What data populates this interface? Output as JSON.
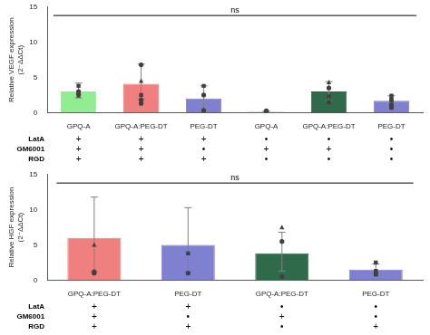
{
  "chart_data": [
    {
      "type": "bar",
      "ylabel": "Relative VEGF expression\n(2⁻ΔΔCt)",
      "categories": [
        "GPQ-A",
        "GPQ-A:PEG-DT",
        "PEG-DT",
        "GPQ-A",
        "GPQ-A:PEG-DT",
        "PEG-DT"
      ],
      "values": [
        3.0,
        4.1,
        2.0,
        0.15,
        3.0,
        1.7
      ],
      "colors": [
        "#90EE90",
        "#F08080",
        "#8080D0",
        "#90EE90",
        "#2F6B4A",
        "#8080D0"
      ],
      "error_low": [
        0.9,
        2.2,
        1.4,
        0.08,
        1.3,
        0.7
      ],
      "error_high": [
        1.2,
        2.8,
        1.8,
        0.1,
        1.4,
        0.7
      ],
      "points": [
        [
          3.8,
          3.0,
          2.6,
          2.4
        ],
        [
          6.8,
          4.5,
          2.5,
          1.8,
          1.3
        ],
        [
          3.8,
          2.5,
          0.4,
          0.3
        ],
        [
          0.25,
          0.15,
          0.1
        ],
        [
          4.3,
          3.5,
          2.3,
          1.5
        ],
        [
          2.4,
          1.9,
          1.7,
          1.1,
          0.9,
          0.7
        ]
      ],
      "point_markers": [
        [
          "square",
          "circle",
          "circle",
          "triangle"
        ],
        [
          "circle",
          "triangle",
          "square",
          "circle",
          "circle"
        ],
        [
          "square",
          "circle",
          "triangle",
          "circle"
        ],
        [
          "circle",
          "triangle",
          "square"
        ],
        [
          "triangle",
          "circle",
          "square",
          "circle"
        ],
        [
          "square",
          "square",
          "square",
          "square",
          "square",
          "square"
        ]
      ],
      "conditions": [
        {
          "label": "LatA",
          "values": [
            "+",
            "+",
            "+",
            "•",
            "•",
            "•"
          ]
        },
        {
          "label": "GM6001",
          "values": [
            "+",
            "+",
            "•",
            "+",
            "+",
            "•"
          ]
        },
        {
          "label": "RGD",
          "values": [
            "+",
            "+",
            "+",
            "•",
            "•",
            "•"
          ]
        }
      ],
      "annotations": [
        {
          "text": "ns",
          "y": 13.8
        }
      ],
      "ylim": [
        0,
        15
      ],
      "yticks": [
        0,
        5,
        10,
        15
      ],
      "grid": false
    },
    {
      "type": "bar",
      "ylabel": "Relative HGF expression\n(2⁻ΔΔCt)",
      "categories": [
        "GPQ-A:PEG-DT",
        "PEG-DT",
        "GPQ-A:PEG-DT",
        "PEG-DT"
      ],
      "values": [
        6.0,
        5.0,
        3.8,
        1.5
      ],
      "colors": [
        "#F08080",
        "#8080D0",
        "#2F6B4A",
        "#8080D0"
      ],
      "error_low": [
        4.8,
        3.8,
        2.5,
        0.4
      ],
      "error_high": [
        5.8,
        5.3,
        3.0,
        0.8
      ],
      "points": [
        [
          5.0,
          1.0,
          1.2
        ],
        [
          3.8,
          1.0
        ],
        [
          7.5,
          5.5,
          0.5
        ],
        [
          2.5,
          1.3,
          1.0,
          0.9,
          0.8
        ]
      ],
      "point_markers": [
        [
          "triangle",
          "circle",
          "circle"
        ],
        [
          "square",
          "circle"
        ],
        [
          "triangle",
          "circle",
          "circle"
        ],
        [
          "square",
          "square",
          "square",
          "square",
          "square"
        ]
      ],
      "conditions": [
        {
          "label": "LatA",
          "values": [
            "+",
            "+",
            "•",
            "•"
          ]
        },
        {
          "label": "GM6001",
          "values": [
            "+",
            "•",
            "+",
            "•"
          ]
        },
        {
          "label": "RGD",
          "values": [
            "+",
            "+",
            "•",
            "+"
          ]
        }
      ],
      "annotations": [
        {
          "text": "ns",
          "y": 13.8
        }
      ],
      "ylim": [
        0,
        15
      ],
      "yticks": [
        0,
        5,
        10,
        15
      ],
      "grid": false
    }
  ]
}
